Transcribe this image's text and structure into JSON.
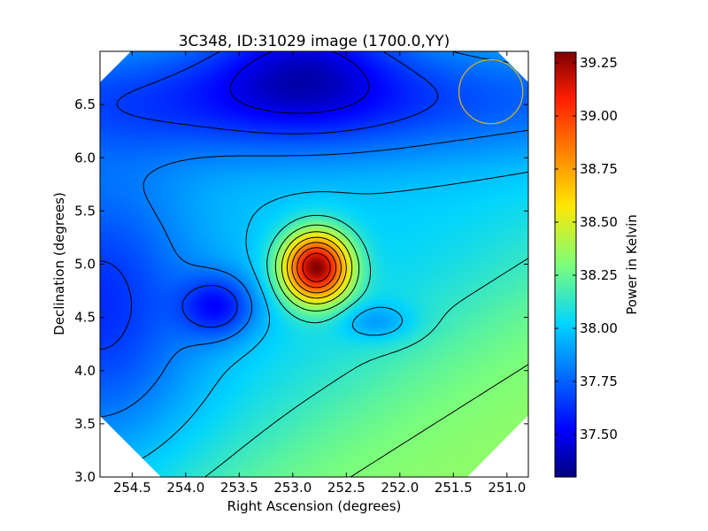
{
  "chart_data": {
    "type": "heatmap",
    "title": "3C348, ID:31029 image (1700.0,YY)",
    "xlabel": "Right Ascension (degrees)",
    "ylabel": "Declination (degrees)",
    "xlim": [
      254.8,
      250.8
    ],
    "ylim": [
      3.0,
      7.0
    ],
    "x_ticks": [
      254.5,
      254.0,
      253.5,
      253.0,
      252.5,
      252.0,
      251.5,
      251.0
    ],
    "x_tick_labels": [
      "254.5",
      "254.0",
      "253.5",
      "253.0",
      "252.5",
      "252.0",
      "251.5",
      "251.0"
    ],
    "y_ticks": [
      3.0,
      3.5,
      4.0,
      4.5,
      5.0,
      5.5,
      6.0,
      6.5
    ],
    "y_tick_labels": [
      "3.0",
      "3.5",
      "4.0",
      "4.5",
      "5.0",
      "5.5",
      "6.0",
      "6.5"
    ],
    "colormap": "jet",
    "colorbar": {
      "label": "Power in Kelvin",
      "min": 37.3,
      "max": 39.3,
      "ticks": [
        37.5,
        37.75,
        38.0,
        38.25,
        38.5,
        38.75,
        39.0,
        39.25
      ],
      "tick_labels": [
        "37.50",
        "37.75",
        "38.00",
        "38.25",
        "38.50",
        "38.75",
        "39.00",
        "39.25"
      ]
    },
    "field": {
      "background_value": 38.0,
      "features": [
        {
          "kind": "peak",
          "ra": 252.78,
          "dec": 4.97,
          "value": 39.28
        },
        {
          "kind": "trough",
          "ra": 252.9,
          "dec": 7.0,
          "value": 37.33
        },
        {
          "kind": "trough",
          "ra": 253.7,
          "dec": 4.6,
          "value": 37.55
        },
        {
          "kind": "low",
          "ra": 252.2,
          "dec": 4.45,
          "value": 37.8
        },
        {
          "kind": "high",
          "ra": 251.4,
          "dec": 3.1,
          "value": 38.35
        }
      ]
    },
    "grid": false,
    "beam_marker": {
      "ra": 251.15,
      "dec": 6.62,
      "radius_deg": 0.3,
      "color": "#c8b428"
    }
  }
}
